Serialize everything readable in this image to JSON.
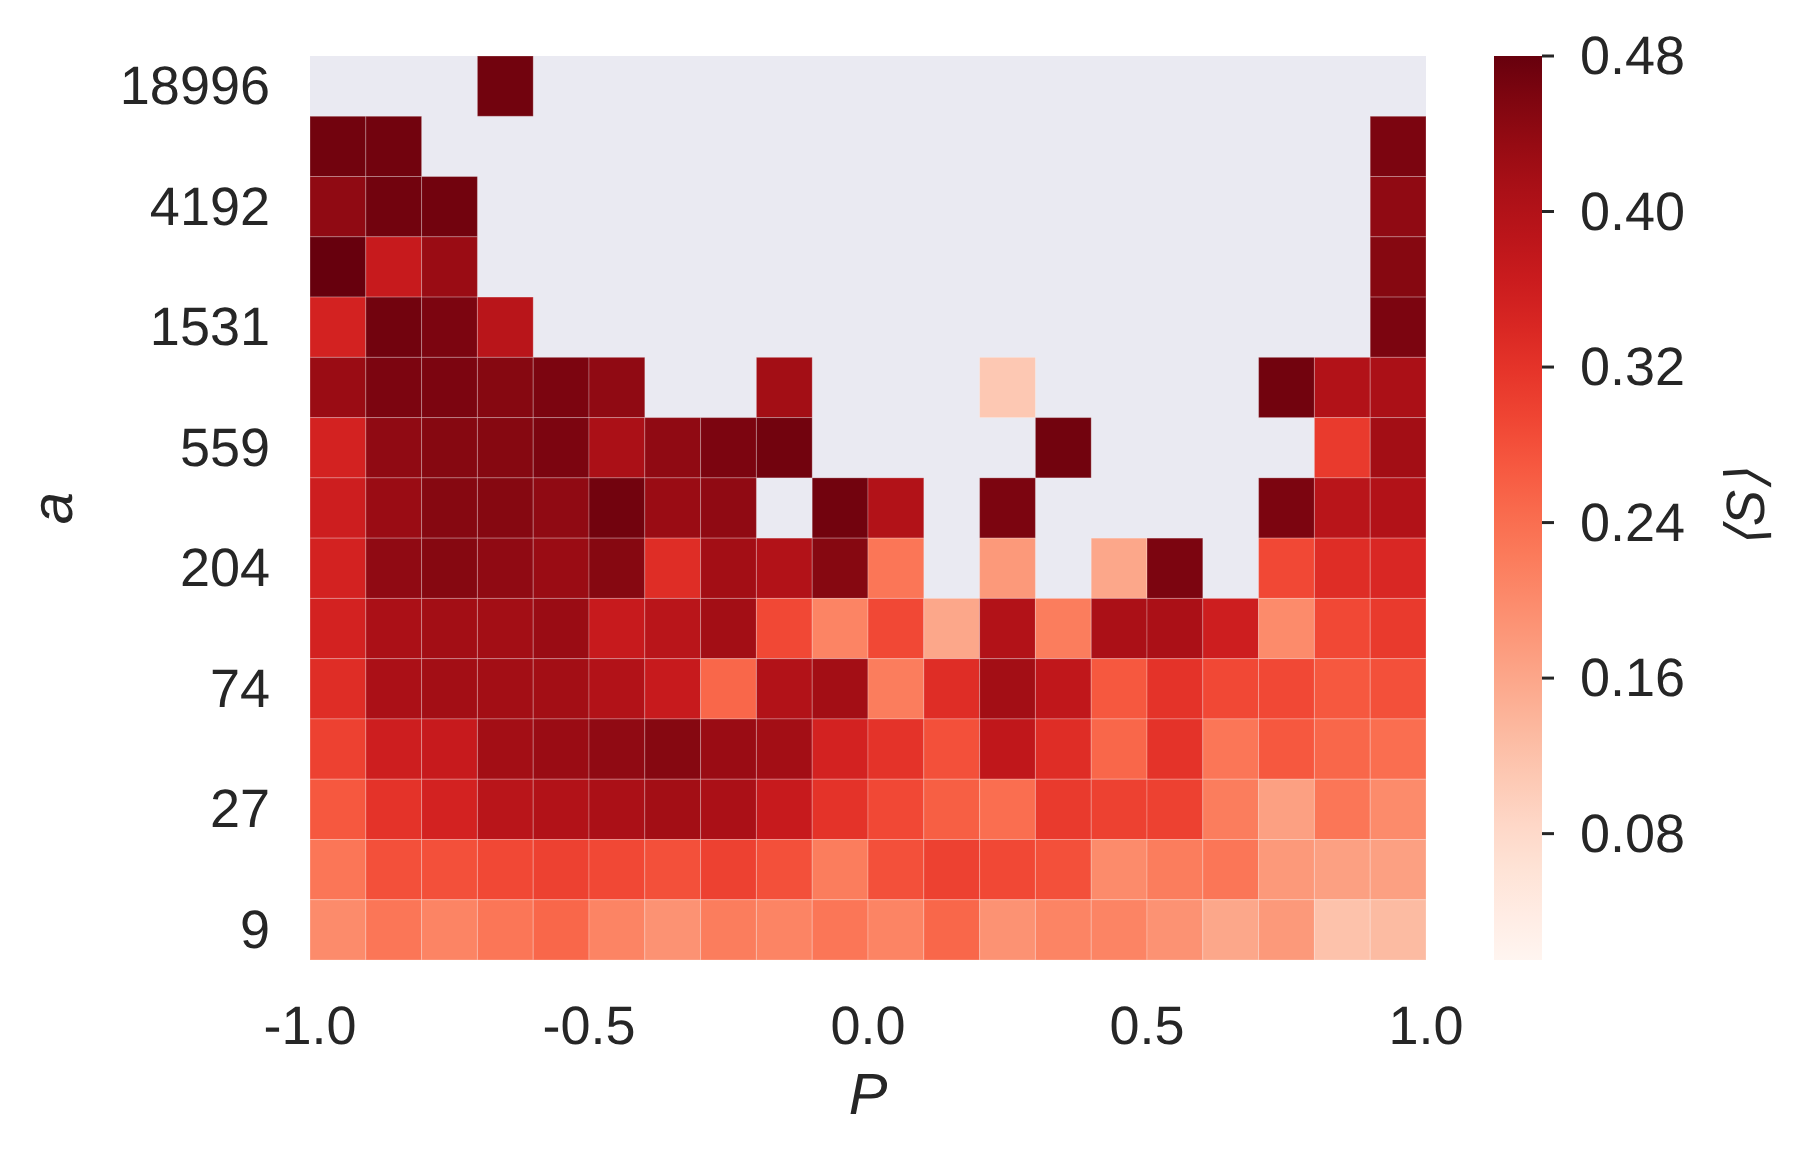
{
  "chart_data": {
    "type": "heatmap",
    "xlabel": "P",
    "ylabel": "a",
    "clabel": "⟨S⟩",
    "x": [
      -0.95,
      -0.85,
      -0.75,
      -0.65,
      -0.55,
      -0.45,
      -0.35,
      -0.25,
      -0.15,
      -0.05,
      0.05,
      0.15,
      0.25,
      0.35,
      0.45,
      0.55,
      0.65,
      0.75,
      0.85,
      0.95
    ],
    "xlim": [
      -1,
      1
    ],
    "xticks": [
      {
        "value": -1,
        "label": "-1.0"
      },
      {
        "value": -0.5,
        "label": "-0.5"
      },
      {
        "value": 0,
        "label": "0.0"
      },
      {
        "value": 0.5,
        "label": "0.5"
      },
      {
        "value": 1,
        "label": "1.0"
      }
    ],
    "y_categories": [
      "18996",
      null,
      "4192",
      null,
      "1531",
      null,
      "559",
      null,
      "204",
      null,
      "74",
      null,
      "27",
      null,
      "9"
    ],
    "cells": [
      [
        null,
        null,
        null,
        0.47,
        null,
        null,
        null,
        null,
        null,
        null,
        null,
        null,
        null,
        null,
        null,
        null,
        null,
        null,
        null,
        null
      ],
      [
        0.47,
        0.47,
        null,
        null,
        null,
        null,
        null,
        null,
        null,
        null,
        null,
        null,
        null,
        null,
        null,
        null,
        null,
        null,
        null,
        0.46
      ],
      [
        0.44,
        0.47,
        0.47,
        null,
        null,
        null,
        null,
        null,
        null,
        null,
        null,
        null,
        null,
        null,
        null,
        null,
        null,
        null,
        null,
        0.44
      ],
      [
        0.48,
        0.37,
        0.43,
        null,
        null,
        null,
        null,
        null,
        null,
        null,
        null,
        null,
        null,
        null,
        null,
        null,
        null,
        null,
        null,
        0.45
      ],
      [
        0.35,
        0.47,
        0.46,
        0.39,
        null,
        null,
        null,
        null,
        null,
        null,
        null,
        null,
        null,
        null,
        null,
        null,
        null,
        null,
        null,
        0.46
      ],
      [
        0.43,
        0.46,
        0.46,
        0.45,
        0.46,
        0.44,
        null,
        null,
        0.42,
        null,
        null,
        null,
        0.11,
        null,
        null,
        null,
        null,
        0.47,
        0.4,
        0.41
      ],
      [
        0.35,
        0.44,
        0.45,
        0.45,
        0.46,
        0.41,
        0.44,
        0.46,
        0.47,
        null,
        null,
        null,
        null,
        0.47,
        null,
        null,
        null,
        null,
        0.31,
        0.42
      ],
      [
        0.36,
        0.43,
        0.45,
        0.45,
        0.44,
        0.47,
        0.43,
        0.44,
        null,
        0.47,
        0.4,
        null,
        0.46,
        null,
        null,
        null,
        null,
        0.46,
        0.39,
        0.4
      ],
      [
        0.35,
        0.44,
        0.45,
        0.44,
        0.43,
        0.45,
        0.33,
        0.42,
        0.4,
        0.45,
        0.23,
        null,
        0.18,
        null,
        0.16,
        0.46,
        null,
        0.29,
        0.33,
        0.34
      ],
      [
        0.35,
        0.41,
        0.42,
        0.42,
        0.43,
        0.37,
        0.39,
        0.42,
        0.29,
        0.21,
        0.29,
        0.16,
        0.4,
        0.22,
        0.41,
        0.41,
        0.36,
        0.2,
        0.29,
        0.31
      ],
      [
        0.33,
        0.41,
        0.42,
        0.42,
        0.42,
        0.4,
        0.37,
        0.25,
        0.4,
        0.42,
        0.22,
        0.33,
        0.42,
        0.38,
        0.27,
        0.32,
        0.29,
        0.29,
        0.27,
        0.28
      ],
      [
        0.3,
        0.36,
        0.37,
        0.42,
        0.43,
        0.44,
        0.45,
        0.43,
        0.42,
        0.35,
        0.32,
        0.28,
        0.38,
        0.33,
        0.25,
        0.32,
        0.23,
        0.27,
        0.25,
        0.24
      ],
      [
        0.27,
        0.32,
        0.35,
        0.39,
        0.4,
        0.41,
        0.42,
        0.41,
        0.37,
        0.32,
        0.29,
        0.26,
        0.24,
        0.31,
        0.3,
        0.3,
        0.22,
        0.17,
        0.23,
        0.2
      ],
      [
        0.23,
        0.28,
        0.28,
        0.29,
        0.3,
        0.29,
        0.28,
        0.3,
        0.28,
        0.22,
        0.28,
        0.3,
        0.29,
        0.28,
        0.2,
        0.22,
        0.23,
        0.18,
        0.17,
        0.17
      ],
      [
        0.2,
        0.23,
        0.21,
        0.23,
        0.25,
        0.21,
        0.19,
        0.22,
        0.21,
        0.23,
        0.21,
        0.25,
        0.19,
        0.21,
        0.21,
        0.19,
        0.16,
        0.18,
        0.12,
        0.13
      ]
    ],
    "clim": [
      0.015,
      0.48
    ],
    "cticks": [
      0.08,
      0.16,
      0.24,
      0.32,
      {
        "value": 0.4,
        "label": "0.40"
      },
      0.48
    ]
  }
}
